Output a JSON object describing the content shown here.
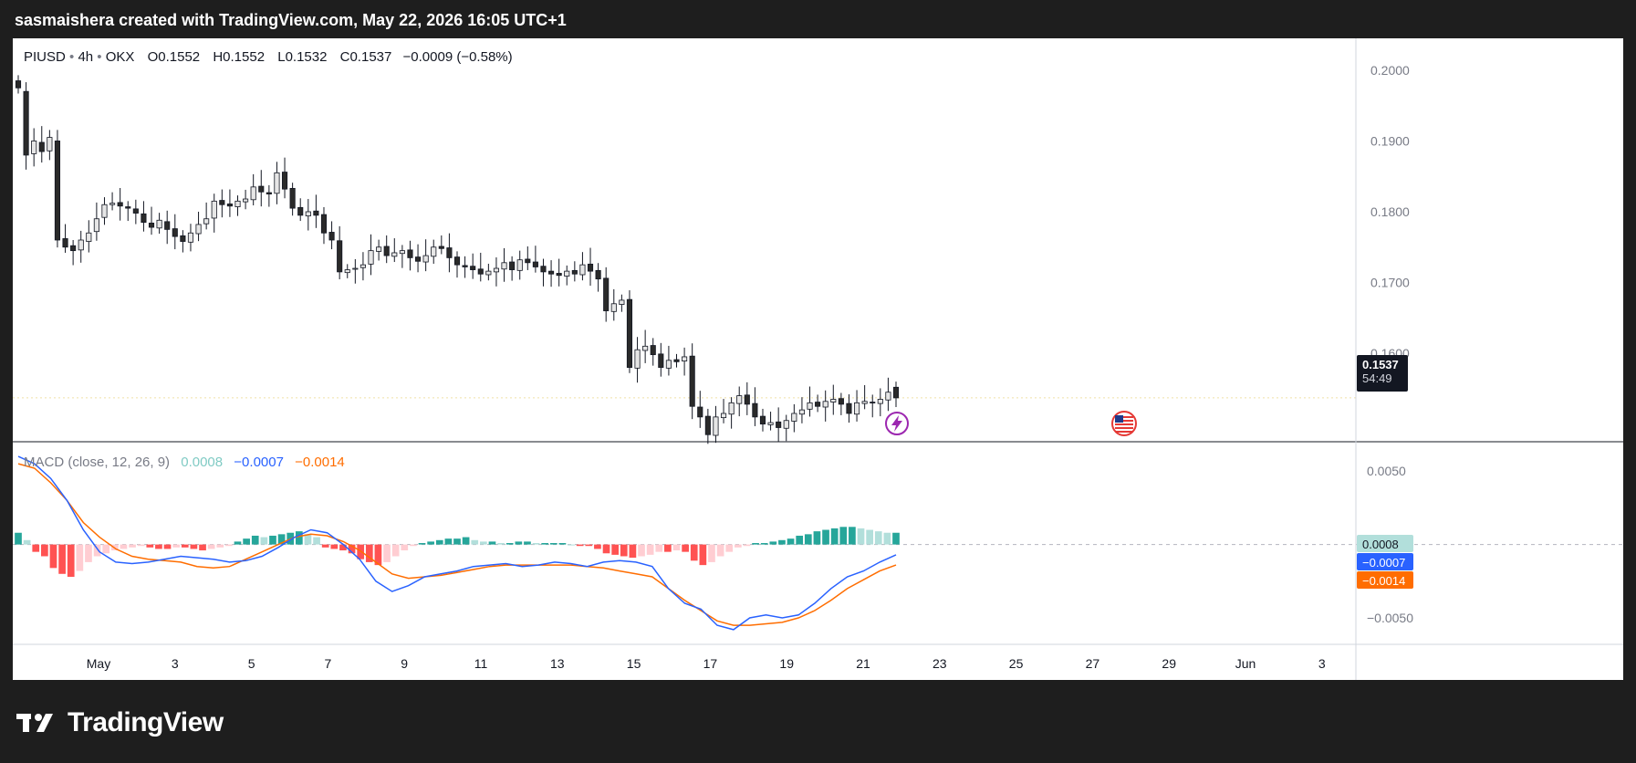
{
  "header": {
    "title": "sasmaishera created with TradingView.com, May 22, 2026 16:05 UTC+1"
  },
  "legend": {
    "symbol": "PIUSD",
    "interval": "4h",
    "exchange": "OKX",
    "open_label": "O",
    "open": "0.1552",
    "high_label": "H",
    "high": "0.1552",
    "low_label": "L",
    "low": "0.1532",
    "close_label": "C",
    "close": "0.1537",
    "change": "−0.0009 (−0.58%)"
  },
  "macd_legend": {
    "name": "MACD (close, 12, 26, 9)",
    "histogram": "0.0008",
    "macd": "−0.0007",
    "signal": "−0.0014"
  },
  "last_price": {
    "value": "0.1537",
    "countdown": "54:49"
  },
  "macd_tags": {
    "histogram": "0.0008",
    "macd": "−0.0007",
    "signal": "−0.0014"
  },
  "colors": {
    "up_candle": "#e6e6e6",
    "down_candle": "#2a2a2a",
    "macd_line": "#2962ff",
    "signal_line": "#ff6d00",
    "hist_pos_strong": "#26a69a",
    "hist_pos_weak": "#b2dfdb",
    "hist_neg_strong": "#ff5252",
    "hist_neg_weak": "#ffcdd2"
  },
  "icons": {
    "lightning": "lightning-event-icon",
    "flag": "us-flag-event-icon",
    "logo": "tradingview-logo-icon"
  },
  "footer": {
    "brand": "TradingView"
  },
  "chart_data": {
    "type": "candlestick",
    "x_range": [
      "2026-04-30 08:00",
      "2026-06-03 00:00"
    ],
    "price_axis": {
      "ticks": [
        "0.2000",
        "0.1900",
        "0.1800",
        "0.1700",
        "0.1600"
      ],
      "range": [
        0.1475,
        0.2045
      ]
    },
    "macd_axis": {
      "ticks": [
        "0.0050",
        "−0.0050"
      ],
      "range": [
        -0.0068,
        0.007
      ]
    },
    "x_ticks": [
      "May",
      "3",
      "5",
      "7",
      "9",
      "11",
      "13",
      "15",
      "17",
      "19",
      "21",
      "23",
      "25",
      "27",
      "29",
      "Jun",
      "3"
    ],
    "candles_close": [
      0.1975,
      0.188,
      0.19,
      0.1885,
      0.1905,
      0.176,
      0.175,
      0.1745,
      0.176,
      0.177,
      0.179,
      0.181,
      0.1812,
      0.1808,
      0.1805,
      0.1798,
      0.1785,
      0.1778,
      0.1788,
      0.1775,
      0.1765,
      0.1758,
      0.177,
      0.1782,
      0.179,
      0.1815,
      0.181,
      0.1808,
      0.1815,
      0.1818,
      0.1835,
      0.1828,
      0.1825,
      0.1855,
      0.1832,
      0.1805,
      0.1795,
      0.18,
      0.1795,
      0.177,
      0.176,
      0.1715,
      0.1718,
      0.172,
      0.1725,
      0.1745,
      0.175,
      0.1738,
      0.1742,
      0.1745,
      0.1735,
      0.173,
      0.1738,
      0.175,
      0.1748,
      0.1735,
      0.1725,
      0.1722,
      0.1718,
      0.1712,
      0.1716,
      0.172,
      0.1728,
      0.1718,
      0.1732,
      0.1728,
      0.1722,
      0.1715,
      0.1712,
      0.171,
      0.1716,
      0.1712,
      0.1725,
      0.1716,
      0.1705,
      0.166,
      0.167,
      0.1675,
      0.158,
      0.1605,
      0.161,
      0.1598,
      0.158,
      0.159,
      0.1588,
      0.1595,
      0.1525,
      0.151,
      0.1485,
      0.151,
      0.1515,
      0.153,
      0.154,
      0.1528,
      0.151,
      0.15,
      0.1502,
      0.1495,
      0.1505,
      0.1515,
      0.152,
      0.153,
      0.1525,
      0.1532,
      0.1535,
      0.1528,
      0.1515,
      0.153,
      0.1532,
      0.153,
      0.1535,
      0.1545,
      0.1537
    ],
    "candles_open": [
      0.1985,
      0.197,
      0.1882,
      0.1898,
      0.1886,
      0.19,
      0.1762,
      0.1752,
      0.1746,
      0.1758,
      0.1772,
      0.1792,
      0.181,
      0.1813,
      0.1807,
      0.1804,
      0.1797,
      0.1784,
      0.1777,
      0.1786,
      0.1776,
      0.1766,
      0.1757,
      0.1769,
      0.1783,
      0.1791,
      0.1816,
      0.1811,
      0.1807,
      0.1814,
      0.1817,
      0.1836,
      0.1827,
      0.1826,
      0.1856,
      0.1833,
      0.1806,
      0.1794,
      0.1801,
      0.1796,
      0.1771,
      0.1759,
      0.1714,
      0.1719,
      0.1721,
      0.1726,
      0.1744,
      0.1751,
      0.1737,
      0.1741,
      0.1746,
      0.1736,
      0.1729,
      0.1737,
      0.1751,
      0.1749,
      0.1736,
      0.1724,
      0.1723,
      0.1719,
      0.1711,
      0.1715,
      0.1719,
      0.1729,
      0.1717,
      0.1733,
      0.1729,
      0.1723,
      0.1716,
      0.1713,
      0.1709,
      0.1717,
      0.1711,
      0.1726,
      0.1717,
      0.1706,
      0.1659,
      0.1669,
      0.1676,
      0.1579,
      0.1604,
      0.1611,
      0.1599,
      0.1579,
      0.1591,
      0.1589,
      0.1596,
      0.1524,
      0.1511,
      0.1484,
      0.1509,
      0.1514,
      0.1529,
      0.1541,
      0.1529,
      0.1511,
      0.1499,
      0.1503,
      0.1494,
      0.1504,
      0.1514,
      0.1521,
      0.1531,
      0.1524,
      0.1531,
      0.1536,
      0.1529,
      0.1514,
      0.1529,
      0.1531,
      0.1529,
      0.1534,
      0.1552
    ],
    "macd_series": {
      "macd": [
        0.006,
        0.0055,
        0.0045,
        0.003,
        0.001,
        -0.0005,
        -0.0012,
        -0.0013,
        -0.0012,
        -0.001,
        -0.0008,
        -0.0009,
        -0.001,
        -0.0012,
        -0.0011,
        -0.0008,
        -0.0002,
        0.0005,
        0.001,
        0.0008,
        0.0,
        -0.001,
        -0.0025,
        -0.0032,
        -0.0028,
        -0.0022,
        -0.002,
        -0.0018,
        -0.0015,
        -0.0014,
        -0.0013,
        -0.0015,
        -0.0014,
        -0.0012,
        -0.0013,
        -0.0015,
        -0.0012,
        -0.0011,
        -0.0012,
        -0.0015,
        -0.003,
        -0.004,
        -0.0044,
        -0.0055,
        -0.0058,
        -0.005,
        -0.0048,
        -0.005,
        -0.0048,
        -0.004,
        -0.003,
        -0.0022,
        -0.0018,
        -0.0012,
        -0.0007
      ],
      "signal": [
        0.0055,
        0.0052,
        0.0042,
        0.003,
        0.0015,
        0.0005,
        -0.0003,
        -0.0008,
        -0.001,
        -0.0011,
        -0.0012,
        -0.0015,
        -0.0016,
        -0.0015,
        -0.001,
        -0.0005,
        0.0,
        0.0005,
        0.0007,
        0.0006,
        0.0002,
        -0.0004,
        -0.0012,
        -0.002,
        -0.0023,
        -0.0022,
        -0.0021,
        -0.0019,
        -0.0017,
        -0.0015,
        -0.0014,
        -0.0014,
        -0.0014,
        -0.0014,
        -0.0014,
        -0.0015,
        -0.0016,
        -0.0018,
        -0.002,
        -0.0022,
        -0.003,
        -0.0038,
        -0.0045,
        -0.0052,
        -0.0055,
        -0.0055,
        -0.0054,
        -0.0053,
        -0.005,
        -0.0045,
        -0.0038,
        -0.003,
        -0.0024,
        -0.0018,
        -0.0014
      ]
    },
    "macd_histogram": [
      0.0008,
      0.0003,
      -0.0005,
      -0.0008,
      -0.0016,
      -0.002,
      -0.0022,
      -0.0018,
      -0.0012,
      -0.0008,
      -0.0006,
      -0.0004,
      -0.0003,
      -0.0002,
      -0.0001,
      -0.0002,
      -0.0003,
      -0.0003,
      -0.0002,
      -0.0002,
      -0.0003,
      -0.0004,
      -0.0003,
      -0.0002,
      -0.0001,
      0.0002,
      0.0004,
      0.0006,
      0.0005,
      0.0006,
      0.0007,
      0.0008,
      0.0009,
      0.0007,
      0.0005,
      -0.0002,
      -0.0003,
      -0.0004,
      -0.0006,
      -0.001,
      -0.0012,
      -0.0014,
      -0.0012,
      -0.0008,
      -0.0004,
      -0.0001,
      0.0001,
      0.0002,
      0.0003,
      0.0004,
      0.0004,
      0.0005,
      0.0003,
      0.0002,
      0.0002,
      0.0001,
      0.0001,
      0.0002,
      0.0002,
      0.0001,
      0.0001,
      0.0001,
      0.0001,
      0.0,
      -0.0001,
      -0.0001,
      -0.0003,
      -0.0006,
      -0.0007,
      -0.0008,
      -0.0009,
      -0.0008,
      -0.0007,
      -0.0005,
      -0.0005,
      -0.0004,
      -0.0005,
      -0.0011,
      -0.0014,
      -0.0012,
      -0.0008,
      -0.0005,
      -0.0002,
      -0.0001,
      0.0001,
      0.0001,
      0.0002,
      0.0003,
      0.0004,
      0.0006,
      0.0007,
      0.0009,
      0.001,
      0.0011,
      0.0012,
      0.0012,
      0.0011,
      0.001,
      0.0009,
      0.0008,
      0.0008
    ]
  }
}
